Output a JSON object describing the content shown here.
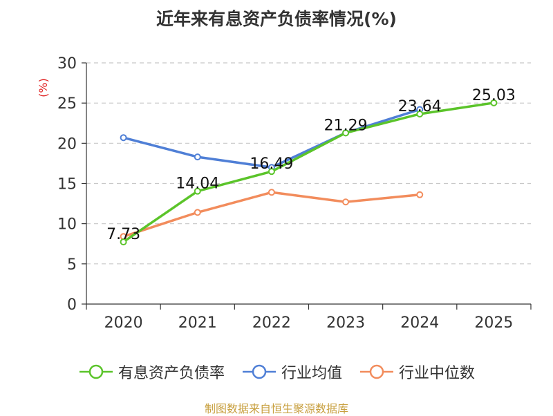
{
  "chart_data": {
    "type": "line",
    "title": "近年来有息资产负债率情况(%)",
    "ylabel": "(%)",
    "xlabel": "",
    "categories": [
      "2020",
      "2021",
      "2022",
      "2023",
      "2024",
      "2025"
    ],
    "ylim": [
      0,
      30
    ],
    "yticks": [
      0,
      5,
      10,
      15,
      20,
      25,
      30
    ],
    "grid": true,
    "legend_position": "bottom",
    "series": [
      {
        "name": "有息资产负债率",
        "color": "#5bc42a",
        "values": [
          7.73,
          14.04,
          16.49,
          21.29,
          23.64,
          25.03
        ],
        "labels": [
          "7.73",
          "14.04",
          "16.49",
          "21.29",
          "23.64",
          "25.03"
        ]
      },
      {
        "name": "行业均值",
        "color": "#4f7fd6",
        "values": [
          20.7,
          18.3,
          17.0,
          21.3,
          24.2,
          null
        ]
      },
      {
        "name": "行业中位数",
        "color": "#f28c5c",
        "values": [
          8.4,
          11.4,
          13.9,
          12.7,
          13.6,
          null
        ]
      }
    ],
    "label_color": "#111111",
    "ylabel_color": "#e02020",
    "source": "制图数据来自恒生聚源数据库"
  }
}
